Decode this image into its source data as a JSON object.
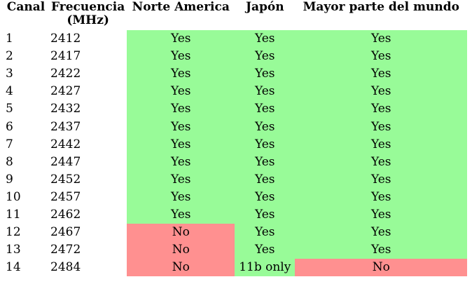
{
  "headers": {
    "canal": "Canal",
    "frecuencia_line1": "Frecuencia",
    "frecuencia_line2": "(MHz)",
    "norte_america": "Norte America",
    "japon": "Japón",
    "mundo": "Mayor parte del mundo"
  },
  "colors": {
    "allowed": "#98fb98",
    "not_allowed": "#ff9090"
  },
  "rows": [
    {
      "canal": "1",
      "freq": "2412",
      "na": "Yes",
      "jp": "Yes",
      "world": "Yes"
    },
    {
      "canal": "2",
      "freq": "2417",
      "na": "Yes",
      "jp": "Yes",
      "world": "Yes"
    },
    {
      "canal": "3",
      "freq": "2422",
      "na": "Yes",
      "jp": "Yes",
      "world": "Yes"
    },
    {
      "canal": "4",
      "freq": "2427",
      "na": "Yes",
      "jp": "Yes",
      "world": "Yes"
    },
    {
      "canal": "5",
      "freq": "2432",
      "na": "Yes",
      "jp": "Yes",
      "world": "Yes"
    },
    {
      "canal": "6",
      "freq": "2437",
      "na": "Yes",
      "jp": "Yes",
      "world": "Yes"
    },
    {
      "canal": "7",
      "freq": "2442",
      "na": "Yes",
      "jp": "Yes",
      "world": "Yes"
    },
    {
      "canal": "8",
      "freq": "2447",
      "na": "Yes",
      "jp": "Yes",
      "world": "Yes"
    },
    {
      "canal": "9",
      "freq": "2452",
      "na": "Yes",
      "jp": "Yes",
      "world": "Yes"
    },
    {
      "canal": "10",
      "freq": "2457",
      "na": "Yes",
      "jp": "Yes",
      "world": "Yes"
    },
    {
      "canal": "11",
      "freq": "2462",
      "na": "Yes",
      "jp": "Yes",
      "world": "Yes"
    },
    {
      "canal": "12",
      "freq": "2467",
      "na": "No",
      "jp": "Yes",
      "world": "Yes"
    },
    {
      "canal": "13",
      "freq": "2472",
      "na": "No",
      "jp": "Yes",
      "world": "Yes"
    },
    {
      "canal": "14",
      "freq": "2484",
      "na": "No",
      "jp": "11b only",
      "world": "No"
    }
  ]
}
